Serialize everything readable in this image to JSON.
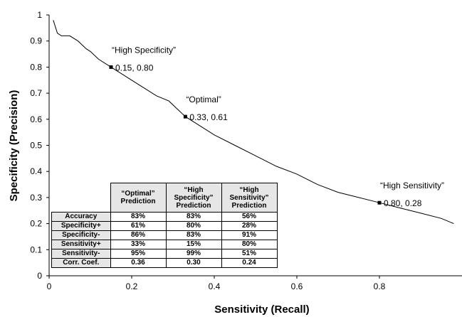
{
  "chart_data": {
    "type": "line",
    "title": "",
    "xlabel": "Sensitivity (Recall)",
    "ylabel": "Specificity (Precision)",
    "xlim": [
      0,
      1
    ],
    "ylim": [
      0,
      1
    ],
    "x_ticks": [
      "0",
      "0.2",
      "0.4",
      "0.6",
      "0.8"
    ],
    "y_ticks": [
      "0",
      "0.1",
      "0.2",
      "0.3",
      "0.4",
      "0.5",
      "0.6",
      "0.7",
      "0.8",
      "0.9",
      "1"
    ],
    "grid": false,
    "series": [
      {
        "x": [
          0.01,
          0.02,
          0.03,
          0.05,
          0.07,
          0.09,
          0.1,
          0.12,
          0.15,
          0.18,
          0.2,
          0.23,
          0.26,
          0.29,
          0.31,
          0.33,
          0.36,
          0.4,
          0.45,
          0.5,
          0.55,
          0.6,
          0.65,
          0.7,
          0.75,
          0.8,
          0.85,
          0.9,
          0.95,
          0.98
        ],
        "y": [
          0.98,
          0.93,
          0.92,
          0.92,
          0.9,
          0.87,
          0.86,
          0.83,
          0.8,
          0.77,
          0.75,
          0.72,
          0.69,
          0.67,
          0.64,
          0.61,
          0.58,
          0.54,
          0.5,
          0.46,
          0.42,
          0.39,
          0.35,
          0.32,
          0.3,
          0.28,
          0.26,
          0.24,
          0.22,
          0.2
        ]
      }
    ],
    "annotations": [
      {
        "label": "“High Specificity”",
        "value": "0.15, 0.80",
        "x": 0.15,
        "y": 0.8
      },
      {
        "label": "“Optimal”",
        "value": "0.33, 0.61",
        "x": 0.33,
        "y": 0.61
      },
      {
        "label": "“High Sensitivity”",
        "value": "0.80, 0.28",
        "x": 0.8,
        "y": 0.28
      }
    ]
  },
  "table": {
    "headers": [
      {
        "line1": "“Optimal”",
        "line2": "Prediction",
        "line3": ""
      },
      {
        "line1": "“High",
        "line2": "Specificity”",
        "line3": "Prediction"
      },
      {
        "line1": "“High",
        "line2": "Sensitivity”",
        "line3": "Prediction"
      }
    ],
    "rows": [
      {
        "label": "Accuracy",
        "values": [
          "83%",
          "83%",
          "56%"
        ]
      },
      {
        "label": "Specificity+",
        "values": [
          "61%",
          "80%",
          "28%"
        ]
      },
      {
        "label": "Specificity-",
        "values": [
          "86%",
          "83%",
          "91%"
        ]
      },
      {
        "label": "Sensitivity+",
        "values": [
          "33%",
          "15%",
          "80%"
        ]
      },
      {
        "label": "Sensitivity-",
        "values": [
          "95%",
          "99%",
          "51%"
        ]
      },
      {
        "label": "Corr. Coef.",
        "values": [
          "0.36",
          "0.30",
          "0.24"
        ]
      }
    ]
  }
}
